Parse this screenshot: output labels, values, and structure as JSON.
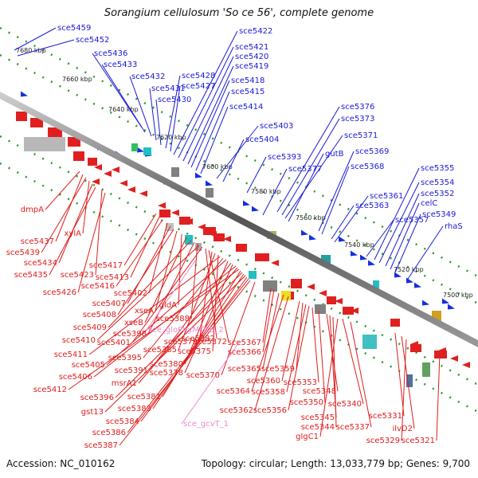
{
  "title": "Sorangium cellulosum 'So ce 56', complete genome",
  "accession": "Accession: NC_010162",
  "topology": "Topology: circular; Length: 13,033,779 bp; Genes: 9,700",
  "kbp_ticks": [
    "7680 kbp",
    "7660 kbp",
    "7640 kbp",
    "7620 kbp",
    "7600 kbp",
    "7580 kbp",
    "7560 kbp",
    "7540 kbp",
    "7520 kbp",
    "7500 kbp"
  ],
  "forward_genes": [
    "sce5459",
    "sce5452",
    "sce5436",
    "sce5433",
    "sce5432",
    "sce5431",
    "sce5430",
    "sce5428",
    "sce5427",
    "sce5422",
    "sce5421",
    "sce5420",
    "sce5419",
    "sce5418",
    "sce5415",
    "sce5414",
    "sce5403",
    "sce5404",
    "sce5393",
    "sce5377",
    "sce5376",
    "sce5373",
    "sce5371",
    "gutB",
    "sce5369",
    "sce5368",
    "sce5355",
    "sce5354",
    "sce5352",
    "celC",
    "sce5349",
    "rhaS",
    "sce5361",
    "sce5363",
    "sce5357"
  ],
  "reverse_genes": [
    "dmpA",
    "sce5437",
    "sce5439",
    "xylA",
    "sce5434",
    "sce5435",
    "sce5423",
    "sce5426",
    "sce5417",
    "sce5413",
    "sce5416",
    "sce5402",
    "sce5407",
    "sce5408",
    "xseA",
    "gldA",
    "xseB",
    "sce5409",
    "sce5398",
    "sce5388",
    "sce5410",
    "sce5401",
    "sce5382",
    "sce5372",
    "sce5379",
    "sce5385",
    "sce5375",
    "sce5411",
    "sce5395",
    "sce5405",
    "sce5380",
    "sce5391",
    "sce5378",
    "sce5406",
    "msrA1",
    "sce5412",
    "sce5381",
    "sce5396",
    "sce5383",
    "gst13",
    "sce5384",
    "sce5386",
    "sce5387",
    "sce5370",
    "sce5367",
    "sce5366",
    "sce5365",
    "sce5359",
    "sce5360",
    "sce5364",
    "sce5358",
    "sce5353",
    "sce5362",
    "sce5356",
    "sce5348",
    "sce5350",
    "sce5340",
    "sce5345",
    "sce5344",
    "sce5337",
    "glgC1",
    "sce5331",
    "ilvD2",
    "sce5329",
    "sce5321"
  ],
  "rna_genes": [
    "sce_gloPhyMTCB_2",
    "sce_gcvT_1"
  ]
}
